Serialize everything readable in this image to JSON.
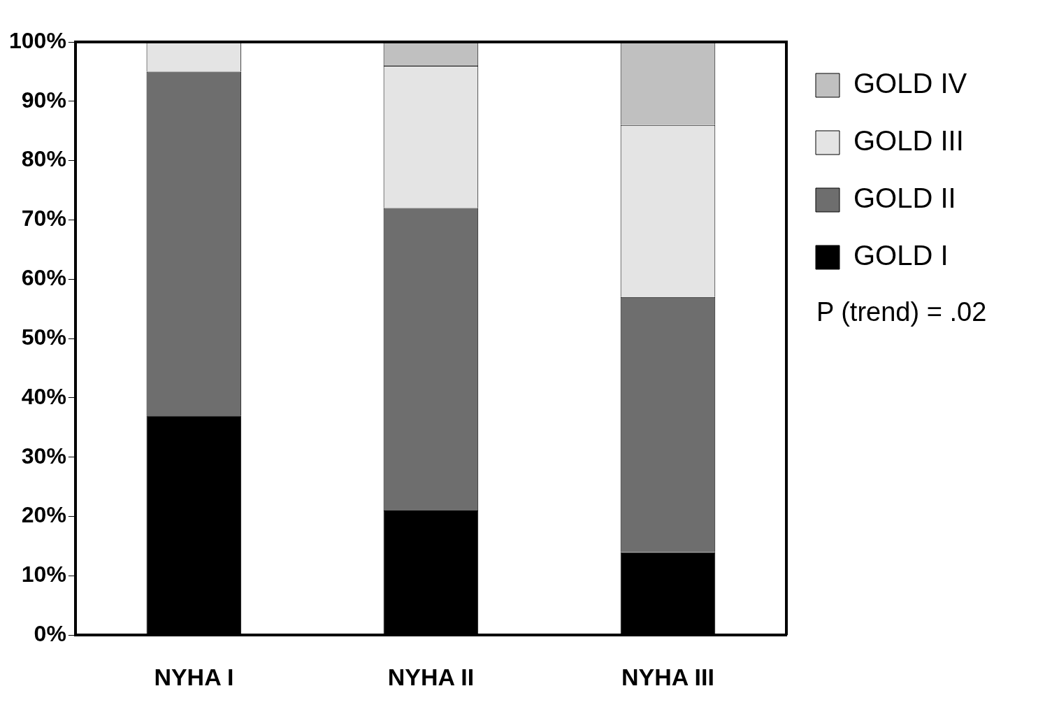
{
  "chart_data": {
    "type": "bar",
    "stacked": true,
    "categories": [
      "NYHA I",
      "NYHA II",
      "NYHA III"
    ],
    "series": [
      {
        "name": "GOLD I",
        "color": "#000000",
        "values": [
          37,
          21,
          14
        ]
      },
      {
        "name": "GOLD II",
        "color": "#6e6e6e",
        "values": [
          58,
          51,
          43
        ]
      },
      {
        "name": "GOLD III",
        "color": "#e4e4e4",
        "values": [
          5,
          24,
          29
        ]
      },
      {
        "name": "GOLD IV",
        "color": "#c0c0c0",
        "values": [
          0,
          4,
          14
        ]
      }
    ],
    "ylim": [
      0,
      100
    ],
    "yticks": [
      {
        "value": 0,
        "label": "0%"
      },
      {
        "value": 10,
        "label": "10%"
      },
      {
        "value": 20,
        "label": "20%"
      },
      {
        "value": 30,
        "label": "30%"
      },
      {
        "value": 40,
        "label": "40%"
      },
      {
        "value": 50,
        "label": "50%"
      },
      {
        "value": 60,
        "label": "60%"
      },
      {
        "value": 70,
        "label": "70%"
      },
      {
        "value": 80,
        "label": "80%"
      },
      {
        "value": 90,
        "label": "90%"
      },
      {
        "value": 100,
        "label": "100%"
      }
    ],
    "grid": false,
    "legend": "top right",
    "annotations": [
      "P (trend) = .02"
    ]
  }
}
